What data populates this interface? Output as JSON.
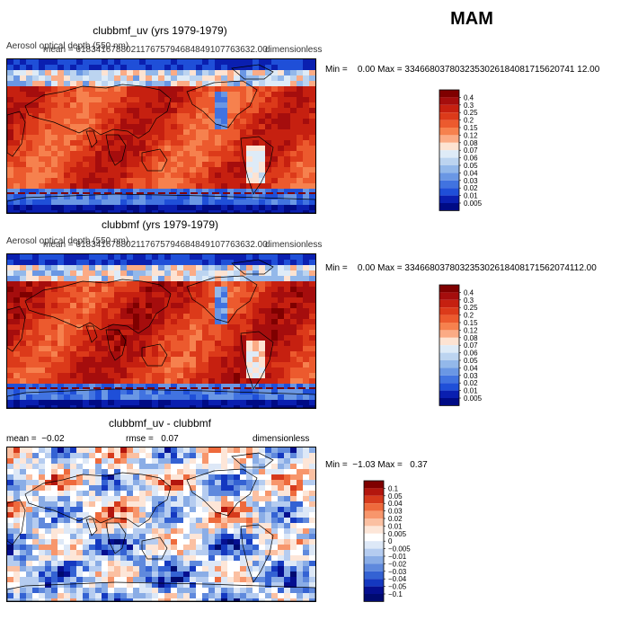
{
  "season": "MAM",
  "panels": [
    {
      "title": "clubbmf_uv (yrs 1979-1979)",
      "overlay_left": "Aerosol optical depth (550 nm)",
      "overlay_mean": "mean = 618341678802117675794684849107763632.00",
      "overlay_units": "dimensionless",
      "min_label": "Min =",
      "min": "0.00",
      "max_label": "Max =",
      "max": "3346680378032353026184081715620741 12.00",
      "legend": [
        "0.4",
        "0.3",
        "0.25",
        "0.2",
        "0.15",
        "0.12",
        "0.08",
        "0.07",
        "0.06",
        "0.05",
        "0.04",
        "0.03",
        "0.02",
        "0.01",
        "0.005"
      ]
    },
    {
      "title": "clubbmf (yrs 1979-1979)",
      "overlay_left": "Aerosol optical depth (550 nm)",
      "overlay_mean": "mean = 618341678802117675794684849107763632.00",
      "overlay_units": "dimensionless",
      "min_label": "Min =",
      "min": "0.00",
      "max_label": "Max =",
      "max": "334668037803235302618408171562074112.00",
      "legend": [
        "0.4",
        "0.3",
        "0.25",
        "0.2",
        "0.15",
        "0.12",
        "0.08",
        "0.07",
        "0.06",
        "0.05",
        "0.04",
        "0.03",
        "0.02",
        "0.01",
        "0.005"
      ]
    },
    {
      "title": "clubbmf_uv - clubbmf",
      "mean_label": "mean =",
      "mean": "−0.02",
      "rmse_label": "rmse =",
      "rmse": "0.07",
      "units": "dimensionless",
      "min_label": "Min =",
      "min": "−1.03",
      "max_label": "Max =",
      "max": "0.37",
      "legend": [
        "0.1",
        "0.05",
        "0.04",
        "0.03",
        "0.02",
        "0.01",
        "0.005",
        "0",
        "−0.005",
        "−0.01",
        "−0.02",
        "−0.03",
        "−0.04",
        "−0.05",
        "−0.1"
      ]
    }
  ],
  "colors": {
    "seq": [
      "#7f0000",
      "#a50d0d",
      "#c62010",
      "#dc3a1a",
      "#ec5a2e",
      "#f6814e",
      "#fbab85",
      "#fde3d2",
      "#deebf7",
      "#bcd4f0",
      "#93b8ea",
      "#6a97e4",
      "#4173e0",
      "#1f4fd8",
      "#0a1fb0",
      "#000b85"
    ],
    "div": [
      "#7f0000",
      "#b3160e",
      "#d63a1c",
      "#ee6a3c",
      "#f7966c",
      "#fbc0a2",
      "#fde6d8",
      "#ffffff",
      "#dde8f7",
      "#b5ccf0",
      "#8aade6",
      "#5f89dd",
      "#3462d3",
      "#1438c0",
      "#050f90",
      "#000a70"
    ],
    "land": "#000000"
  }
}
